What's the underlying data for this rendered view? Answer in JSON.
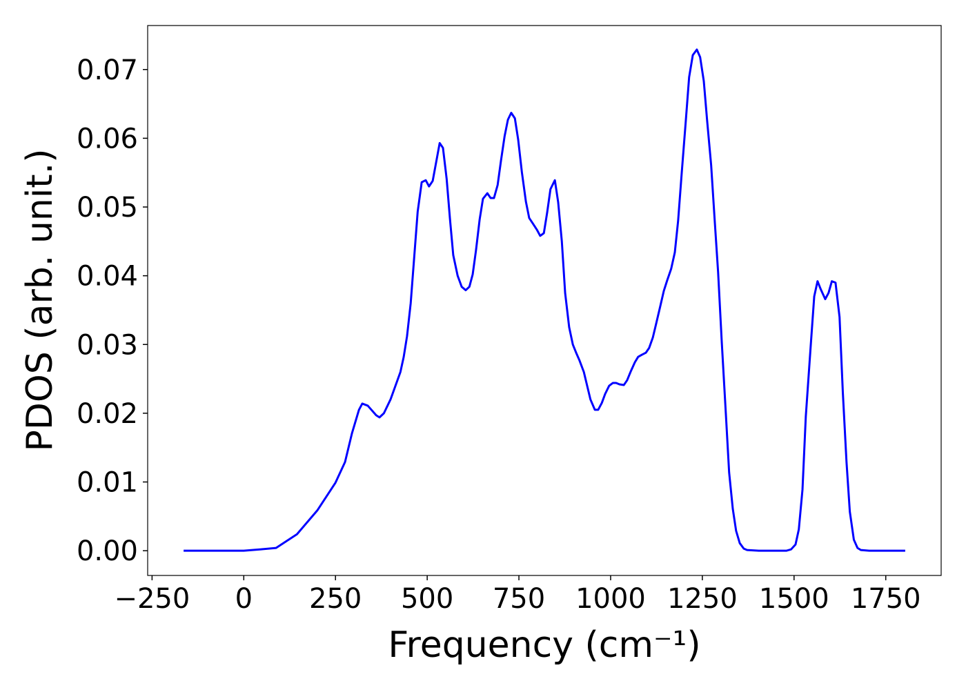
{
  "chart_data": {
    "type": "line",
    "x_label": "Frequency (cm⁻¹)",
    "y_label": "PDOS (arb. unit.)",
    "x": [
      -164,
      0,
      47,
      88,
      145,
      201,
      250,
      276,
      295,
      314,
      323,
      338,
      361,
      370,
      382,
      400,
      427,
      436,
      445,
      455,
      474,
      485,
      496,
      505,
      515,
      524,
      534,
      543,
      553,
      562,
      571,
      583,
      594,
      605,
      615,
      624,
      633,
      643,
      652,
      664,
      673,
      682,
      692,
      701,
      711,
      720,
      729,
      739,
      748,
      758,
      769,
      778,
      788,
      799,
      808,
      818,
      827,
      836,
      848,
      857,
      867,
      876,
      887,
      897,
      906,
      915,
      927,
      936,
      945,
      957,
      966,
      976,
      985,
      996,
      1006,
      1015,
      1024,
      1036,
      1045,
      1055,
      1066,
      1075,
      1085,
      1096,
      1105,
      1115,
      1124,
      1135,
      1145,
      1154,
      1165,
      1175,
      1184,
      1194,
      1205,
      1214,
      1224,
      1235,
      1244,
      1254,
      1263,
      1274,
      1284,
      1293,
      1303,
      1314,
      1323,
      1333,
      1342,
      1352,
      1363,
      1372,
      1404,
      1479,
      1492,
      1504,
      1513,
      1523,
      1532,
      1545,
      1555,
      1564,
      1573,
      1585,
      1594,
      1603,
      1613,
      1624,
      1633,
      1643,
      1652,
      1663,
      1673,
      1682,
      1705,
      1803
    ],
    "series": [
      {
        "color": "#0000ff",
        "values": [
          0,
          0,
          0.0002,
          0.0004,
          0.0024,
          0.0059,
          0.0099,
          0.0129,
          0.0171,
          0.0205,
          0.0214,
          0.0211,
          0.0197,
          0.0194,
          0.02,
          0.022,
          0.026,
          0.0282,
          0.0312,
          0.036,
          0.0493,
          0.0536,
          0.0539,
          0.053,
          0.0538,
          0.0564,
          0.0593,
          0.0586,
          0.0541,
          0.0483,
          0.043,
          0.04,
          0.0384,
          0.0379,
          0.0384,
          0.0402,
          0.0437,
          0.0482,
          0.0512,
          0.052,
          0.0513,
          0.0513,
          0.0532,
          0.0567,
          0.0603,
          0.0627,
          0.0637,
          0.0629,
          0.0598,
          0.0551,
          0.0508,
          0.0484,
          0.0476,
          0.0467,
          0.0458,
          0.0462,
          0.0492,
          0.0526,
          0.0539,
          0.0507,
          0.045,
          0.0375,
          0.0325,
          0.03,
          0.0288,
          0.0277,
          0.026,
          0.024,
          0.022,
          0.0205,
          0.0205,
          0.0215,
          0.0228,
          0.024,
          0.0244,
          0.0244,
          0.0242,
          0.0241,
          0.0248,
          0.0261,
          0.0274,
          0.0282,
          0.0285,
          0.0288,
          0.0295,
          0.031,
          0.033,
          0.0355,
          0.0378,
          0.0393,
          0.041,
          0.0434,
          0.048,
          0.0551,
          0.0626,
          0.0689,
          0.0721,
          0.0729,
          0.0718,
          0.0683,
          0.0626,
          0.0561,
          0.0478,
          0.0405,
          0.0303,
          0.02,
          0.0114,
          0.0061,
          0.0029,
          0.0011,
          0.0003,
          0.0001,
          0,
          0,
          0.0002,
          0.0009,
          0.0031,
          0.0089,
          0.0195,
          0.0295,
          0.037,
          0.0392,
          0.038,
          0.0366,
          0.0375,
          0.0392,
          0.039,
          0.034,
          0.023,
          0.0129,
          0.0057,
          0.0016,
          0.0004,
          0.0001,
          0,
          0
        ]
      }
    ],
    "xlim": [
      -262,
      1901
    ],
    "ylim": [
      -0.0036,
      0.0764
    ],
    "xticks": [
      {
        "value": -250,
        "label": "−250"
      },
      0,
      250,
      500,
      750,
      1000,
      1250,
      1500,
      1750
    ],
    "yticks": [
      {
        "value": 0,
        "label": "0.00"
      },
      0.01,
      0.02,
      0.03,
      0.04,
      0.05,
      0.06,
      0.07
    ],
    "grid": false
  }
}
